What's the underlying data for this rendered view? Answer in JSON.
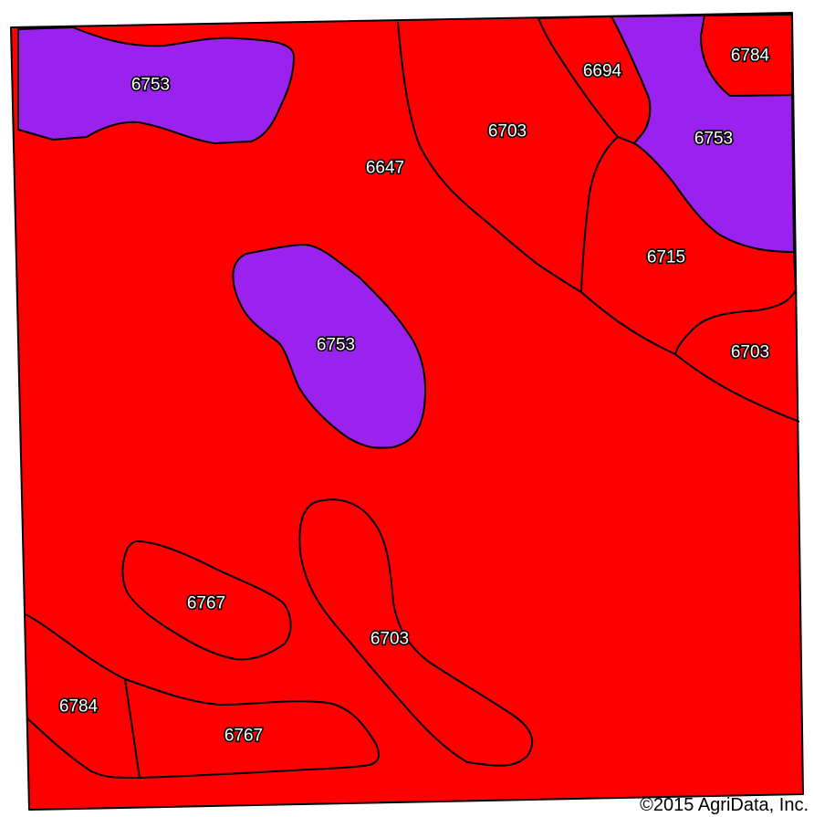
{
  "map": {
    "colors": {
      "background": "#ffffff",
      "soil_red": "#ff0000",
      "soil_purple": "#9b22ee",
      "boundary": "#000000",
      "frame": "#000000"
    },
    "soil_units": [
      {
        "id": "6753-nw",
        "label": "6753",
        "color": "purple"
      },
      {
        "id": "6647",
        "label": "6647",
        "color": "red"
      },
      {
        "id": "6703-n",
        "label": "6703",
        "color": "red"
      },
      {
        "id": "6694",
        "label": "6694",
        "color": "red"
      },
      {
        "id": "6784-ne",
        "label": "6784",
        "color": "red"
      },
      {
        "id": "6753-ne",
        "label": "6753",
        "color": "purple"
      },
      {
        "id": "6715",
        "label": "6715",
        "color": "red"
      },
      {
        "id": "6703-e",
        "label": "6703",
        "color": "red"
      },
      {
        "id": "6753-c",
        "label": "6753",
        "color": "purple"
      },
      {
        "id": "6767-w",
        "label": "6767",
        "color": "red"
      },
      {
        "id": "6703-s",
        "label": "6703",
        "color": "red"
      },
      {
        "id": "6784-sw",
        "label": "6784",
        "color": "red"
      },
      {
        "id": "6767-s",
        "label": "6767",
        "color": "red"
      }
    ]
  },
  "footer": {
    "copyright": "©2015 AgriData, Inc."
  }
}
